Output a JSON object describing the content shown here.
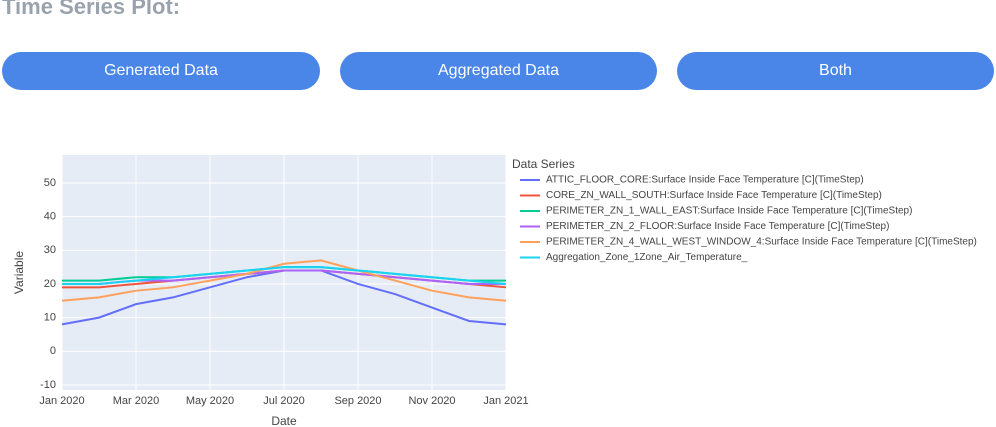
{
  "page_title": "Time Series Plot:",
  "buttons": [
    "Generated Data",
    "Aggregated Data",
    "Both"
  ],
  "chart_data": {
    "type": "line",
    "xlabel": "Date",
    "ylabel": "Variable",
    "legend_title": "Data Series",
    "legend": "right",
    "grid": true,
    "x": [
      "2020-01",
      "2020-02",
      "2020-03",
      "2020-04",
      "2020-05",
      "2020-06",
      "2020-07",
      "2020-08",
      "2020-09",
      "2020-10",
      "2020-11",
      "2020-12",
      "2021-01"
    ],
    "xlim": [
      "2020-01",
      "2021-01"
    ],
    "xticks": [
      {
        "value": "2020-01",
        "label": "Jan 2020"
      },
      {
        "value": "2020-03",
        "label": "Mar 2020"
      },
      {
        "value": "2020-05",
        "label": "May 2020"
      },
      {
        "value": "2020-07",
        "label": "Jul 2020"
      },
      {
        "value": "2020-09",
        "label": "Sep 2020"
      },
      {
        "value": "2020-11",
        "label": "Nov 2020"
      },
      {
        "value": "2021-01",
        "label": "Jan 2021"
      }
    ],
    "ylim": [
      -11.5,
      58.3
    ],
    "yticks": [
      -10,
      0,
      10,
      20,
      30,
      40,
      50
    ],
    "series": [
      {
        "name": "ATTIC_FLOOR_CORE:Surface Inside Face Temperature [C](TimeStep)",
        "color": "#636efa",
        "values": [
          8,
          10,
          14,
          16,
          19,
          22,
          24,
          24,
          20,
          17,
          13,
          9,
          8
        ]
      },
      {
        "name": "CORE_ZN_WALL_SOUTH:Surface Inside Face Temperature [C](TimeStep)",
        "color": "#ef553b",
        "values": [
          19,
          19,
          20,
          21,
          22,
          23,
          24,
          24,
          23,
          22,
          21,
          20,
          19
        ]
      },
      {
        "name": "PERIMETER_ZN_1_WALL_EAST:Surface Inside Face Temperature [C](TimeStep)",
        "color": "#00cc96",
        "values": [
          21,
          21,
          22,
          22,
          23,
          24,
          25,
          25,
          24,
          23,
          22,
          21,
          21
        ]
      },
      {
        "name": "PERIMETER_ZN_2_FLOOR:Surface Inside Face Temperature [C](TimeStep)",
        "color": "#ab63fa",
        "values": [
          20,
          20,
          21,
          21,
          22,
          23,
          24,
          24,
          23,
          22,
          21,
          20,
          20
        ]
      },
      {
        "name": "PERIMETER_ZN_4_WALL_WEST_WINDOW_4:Surface Inside Face Temperature [C](TimeStep)",
        "color": "#ffa15a",
        "values": [
          15,
          16,
          18,
          19,
          21,
          23,
          26,
          27,
          24,
          21,
          18,
          16,
          15
        ]
      },
      {
        "name": "Aggregation_Zone_1Zone_Air_Temperature_",
        "color": "#19d3f3",
        "values": [
          20,
          20,
          21,
          22,
          23,
          24,
          25,
          25,
          24,
          23,
          22,
          21,
          20
        ]
      }
    ]
  }
}
